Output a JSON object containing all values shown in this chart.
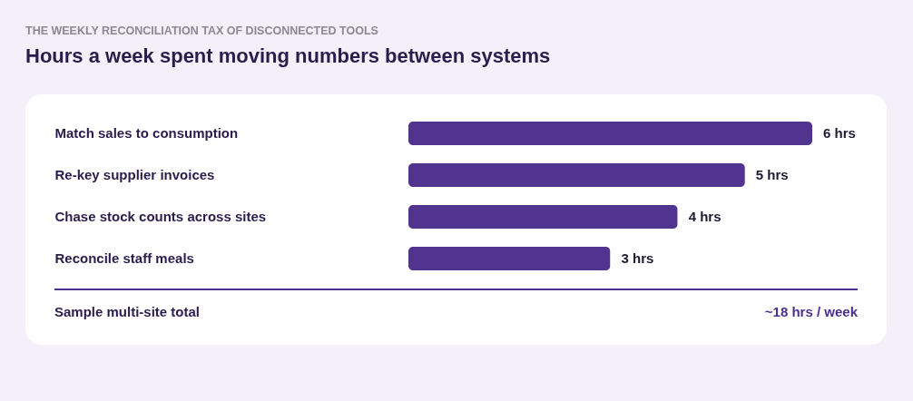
{
  "chart_data": {
    "type": "bar",
    "orientation": "horizontal",
    "subtitle": "THE WEEKLY RECONCILIATION TAX OF DISCONNECTED TOOLS",
    "title": "Hours a week spent moving numbers between systems",
    "categories": [
      "Match sales to consumption",
      "Re-key supplier invoices",
      "Chase stock counts across sites",
      "Reconcile staff meals"
    ],
    "values": [
      6,
      5,
      4,
      3
    ],
    "color": "#50348f",
    "value_labels": [
      "6 hrs",
      "5 hrs",
      "4 hrs",
      "3 hrs"
    ],
    "tick_labels": "y",
    "annotations": [
      "Sample multi-site total",
      "~18 hrs / week"
    ]
  }
}
